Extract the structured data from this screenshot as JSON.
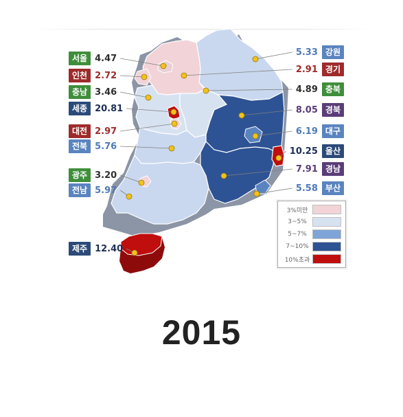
{
  "year": "2015",
  "regions": [
    {
      "id": "seoul",
      "name": "서울",
      "value": "4.47",
      "side": "left",
      "badge_color": "#3f8e3b",
      "value_color": "#2f2f2f"
    },
    {
      "id": "incheon",
      "name": "인천",
      "value": "2.72",
      "side": "left",
      "badge_color": "#9e2b2b",
      "value_color": "#9e2b2b"
    },
    {
      "id": "chungnam",
      "name": "충남",
      "value": "3.46",
      "side": "left",
      "badge_color": "#3f8e3b",
      "value_color": "#2f2f2f"
    },
    {
      "id": "sejong",
      "name": "세종",
      "value": "20.81",
      "side": "left",
      "badge_color": "#2b4a78",
      "value_color": "#1f2f55"
    },
    {
      "id": "daejeon",
      "name": "대전",
      "value": "2.97",
      "side": "left",
      "badge_color": "#9e2b2b",
      "value_color": "#9e2b2b"
    },
    {
      "id": "jeonbuk",
      "name": "전북",
      "value": "5.76",
      "side": "left",
      "badge_color": "#5a84bf",
      "value_color": "#4f7ab8"
    },
    {
      "id": "gwangju",
      "name": "광주",
      "value": "3.20",
      "side": "left",
      "badge_color": "#3f8e3b",
      "value_color": "#2f2f2f"
    },
    {
      "id": "jeonnam",
      "name": "전남",
      "value": "5.97",
      "side": "left",
      "badge_color": "#5a84bf",
      "value_color": "#4f7ab8"
    },
    {
      "id": "jeju",
      "name": "제주",
      "value": "12.40",
      "side": "left",
      "badge_color": "#2b4a78",
      "value_color": "#1f2f55"
    },
    {
      "id": "gangwon",
      "name": "강원",
      "value": "5.33",
      "side": "right",
      "badge_color": "#5a84bf",
      "value_color": "#4f7ab8"
    },
    {
      "id": "gyeonggi",
      "name": "경기",
      "value": "2.91",
      "side": "right",
      "badge_color": "#9e2b2b",
      "value_color": "#9e2b2b"
    },
    {
      "id": "chungbuk",
      "name": "충북",
      "value": "4.89",
      "side": "right",
      "badge_color": "#3f8e3b",
      "value_color": "#2f2f2f"
    },
    {
      "id": "gyeongbuk",
      "name": "경북",
      "value": "8.05",
      "side": "right",
      "badge_color": "#5a3d78",
      "value_color": "#5a3d78"
    },
    {
      "id": "daegu",
      "name": "대구",
      "value": "6.19",
      "side": "right",
      "badge_color": "#5a84bf",
      "value_color": "#4f7ab8"
    },
    {
      "id": "ulsan",
      "name": "울산",
      "value": "10.25",
      "side": "right",
      "badge_color": "#2b4a78",
      "value_color": "#1f2f55"
    },
    {
      "id": "gyeongnam",
      "name": "경남",
      "value": "7.91",
      "side": "right",
      "badge_color": "#5a3d78",
      "value_color": "#5a3d78"
    },
    {
      "id": "busan",
      "name": "부산",
      "value": "5.58",
      "side": "right",
      "badge_color": "#5a84bf",
      "value_color": "#4f7ab8"
    }
  ],
  "legend": [
    {
      "label": "3%미만",
      "color": "#f1d3d8"
    },
    {
      "label": "3~5%",
      "color": "#d7e2f1"
    },
    {
      "label": "5~7%",
      "color": "#7fa4d8"
    },
    {
      "label": "7~10%",
      "color": "#2e5394"
    },
    {
      "label": "10%초과",
      "color": "#c00d0d"
    }
  ]
}
